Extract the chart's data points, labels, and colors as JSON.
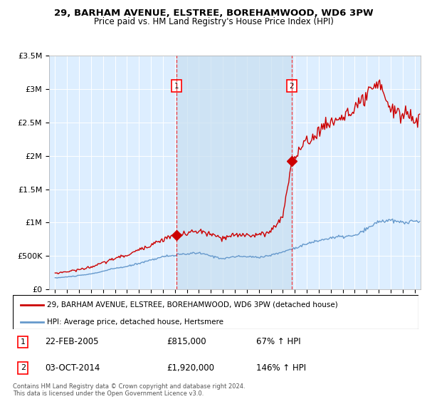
{
  "title": "29, BARHAM AVENUE, ELSTREE, BOREHAMWOOD, WD6 3PW",
  "subtitle": "Price paid vs. HM Land Registry's House Price Index (HPI)",
  "footer": "Contains HM Land Registry data © Crown copyright and database right 2024.\nThis data is licensed under the Open Government Licence v3.0.",
  "legend_line1": "29, BARHAM AVENUE, ELSTREE, BOREHAMWOOD, WD6 3PW (detached house)",
  "legend_line2": "HPI: Average price, detached house, Hertsmere",
  "sale1_label": "1",
  "sale1_date": "22-FEB-2005",
  "sale1_price": "£815,000",
  "sale1_hpi": "67% ↑ HPI",
  "sale1_year": 2005.13,
  "sale1_price_val": 815000,
  "sale2_label": "2",
  "sale2_date": "03-OCT-2014",
  "sale2_price": "£1,920,000",
  "sale2_hpi": "146% ↑ HPI",
  "sale2_year": 2014.75,
  "sale2_price_val": 1920000,
  "red_color": "#cc0000",
  "blue_color": "#6699cc",
  "bg_color": "#ddeeff",
  "shade_color": "#cce4f7",
  "ylim": [
    0,
    3500000
  ],
  "xlim_start": 1994.5,
  "xlim_end": 2025.5
}
